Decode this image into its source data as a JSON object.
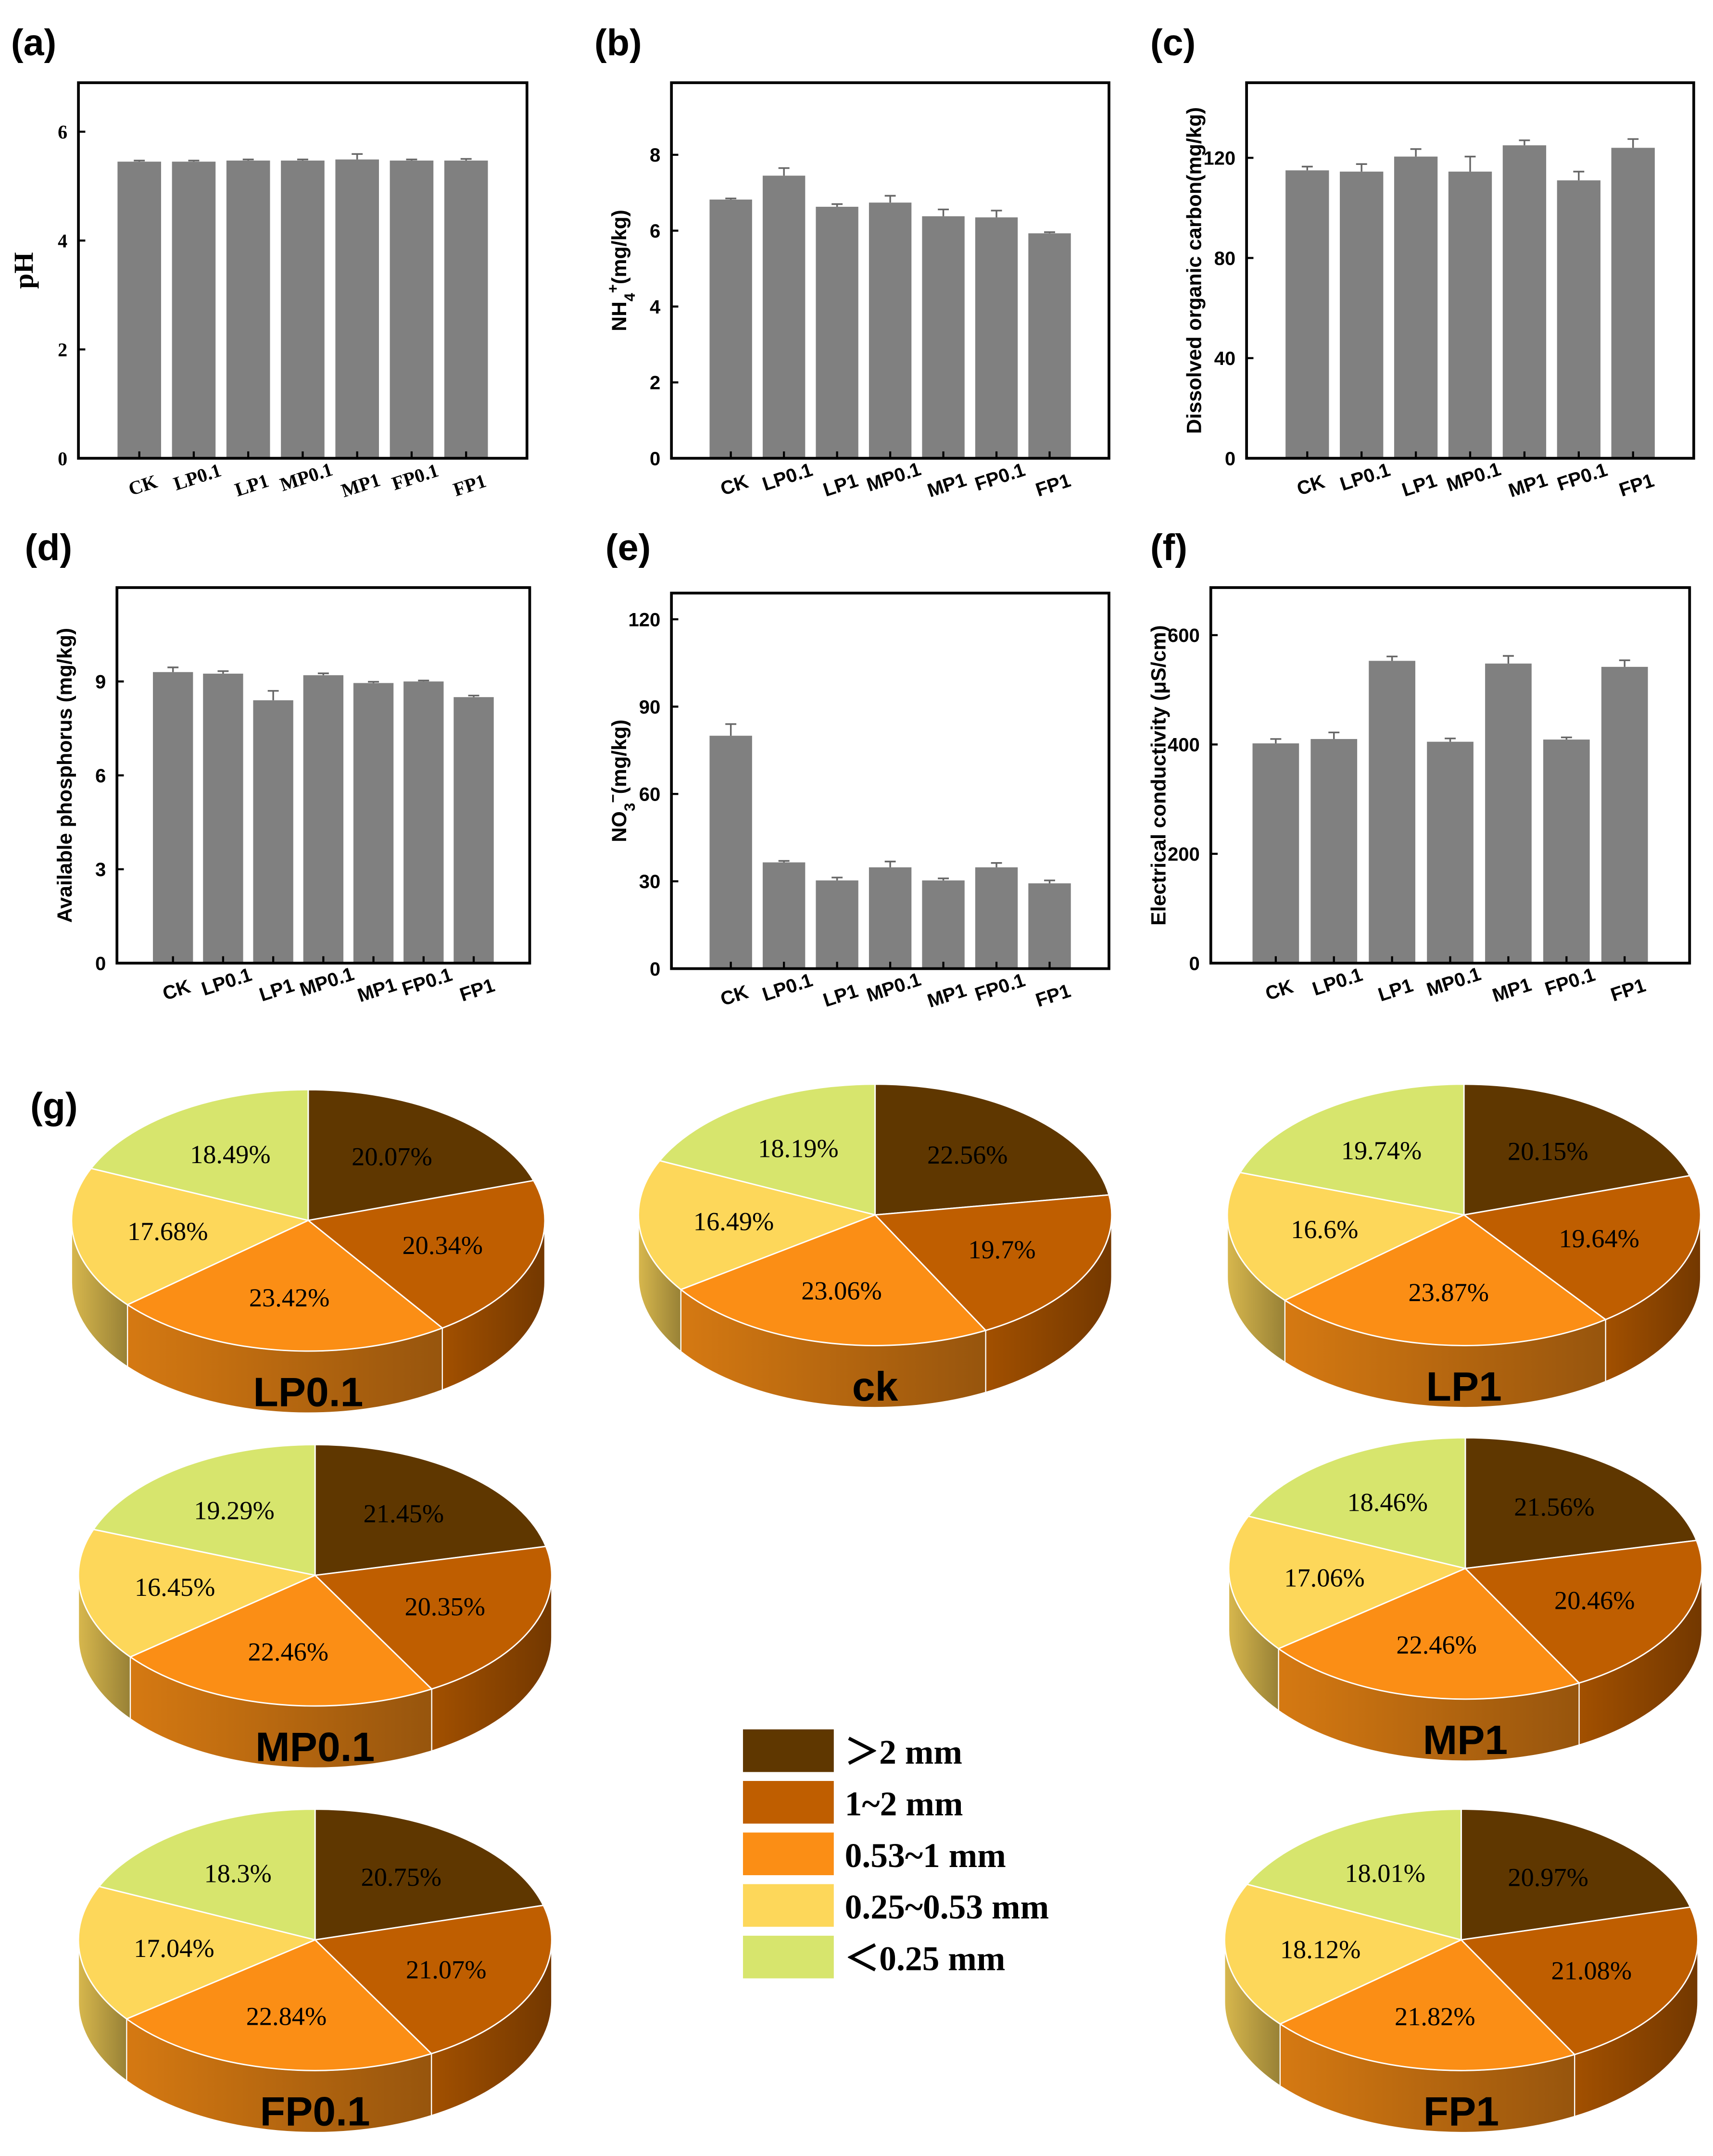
{
  "chart_data": [
    {
      "panel": "(a)",
      "type": "bar",
      "title": "",
      "xlabel": "",
      "ylabel_parts": [
        {
          "t": "pH"
        }
      ],
      "categories": [
        "CK",
        "LP0.1",
        "LP1",
        "MP0.1",
        "MP1",
        "FP0.1",
        "FP1"
      ],
      "values": [
        5.45,
        5.45,
        5.47,
        5.47,
        5.49,
        5.47,
        5.47
      ],
      "errors": [
        0.02,
        0.02,
        0.02,
        0.02,
        0.1,
        0.02,
        0.03
      ],
      "ylim": [
        0,
        6.9
      ],
      "yticks": [
        0,
        2,
        4,
        6
      ],
      "bar_color": "#808080"
    },
    {
      "panel": "(b)",
      "type": "bar",
      "title": "",
      "xlabel": "",
      "ylabel_parts": [
        {
          "t": "NH"
        },
        {
          "t": "4",
          "sub": true
        },
        {
          "t": "+",
          "sup": true
        },
        {
          "t": "(mg/kg)"
        }
      ],
      "categories": [
        "CK",
        "LP0.1",
        "LP1",
        "MP0.1",
        "MP1",
        "FP0.1",
        "FP1"
      ],
      "values": [
        6.82,
        7.45,
        6.63,
        6.74,
        6.38,
        6.35,
        5.93
      ],
      "errors": [
        0.03,
        0.2,
        0.07,
        0.18,
        0.18,
        0.18,
        0.03
      ],
      "ylim": [
        0,
        9.9
      ],
      "yticks": [
        0,
        2,
        4,
        6,
        8
      ],
      "bar_color": "#808080"
    },
    {
      "panel": "(c)",
      "type": "bar",
      "title": "",
      "xlabel": "",
      "ylabel_parts": [
        {
          "t": "Dissolved organic carbon(mg/kg)"
        }
      ],
      "categories": [
        "CK",
        "LP0.1",
        "LP1",
        "MP0.1",
        "MP1",
        "FP0.1",
        "FP1"
      ],
      "values": [
        115,
        114.5,
        120.5,
        114.5,
        125,
        111,
        124
      ],
      "errors": [
        1.5,
        3,
        3,
        6,
        2,
        3.5,
        3.5
      ],
      "ylim": [
        0,
        150
      ],
      "yticks": [
        0,
        40,
        80,
        120
      ],
      "bar_color": "#808080"
    },
    {
      "panel": "(d)",
      "type": "bar",
      "title": "",
      "xlabel": "",
      "ylabel_parts": [
        {
          "t": "Available phosphorus (mg/kg)"
        }
      ],
      "categories": [
        "CK",
        "LP0.1",
        "LP1",
        "MP0.1",
        "MP1",
        "FP0.1",
        "FP1"
      ],
      "values": [
        9.3,
        9.25,
        8.4,
        9.2,
        8.95,
        9.0,
        8.5
      ],
      "errors": [
        0.15,
        0.08,
        0.3,
        0.06,
        0.04,
        0.03,
        0.05
      ],
      "ylim": [
        0,
        12
      ],
      "yticks": [
        0,
        3,
        6,
        9
      ],
      "bar_color": "#808080"
    },
    {
      "panel": "(e)",
      "type": "bar",
      "title": "",
      "xlabel": "",
      "ylabel_parts": [
        {
          "t": "NO"
        },
        {
          "t": "3",
          "sub": true
        },
        {
          "t": "−",
          "sup": true
        },
        {
          "t": "(mg/kg)"
        }
      ],
      "categories": [
        "CK",
        "LP0.1",
        "LP1",
        "MP0.1",
        "MP1",
        "FP0.1",
        "FP1"
      ],
      "values": [
        80,
        36.5,
        30.3,
        34.8,
        30.3,
        34.8,
        29.3
      ],
      "errors": [
        4,
        0.5,
        1,
        2,
        0.7,
        1.5,
        1
      ],
      "ylim": [
        0,
        129
      ],
      "yticks": [
        0,
        30,
        60,
        90,
        120
      ],
      "bar_color": "#808080"
    },
    {
      "panel": "(f)",
      "type": "bar",
      "title": "",
      "xlabel": "",
      "ylabel_parts": [
        {
          "t": "Electrical conductivity (μS/cm)"
        }
      ],
      "categories": [
        "CK",
        "LP0.1",
        "LP1",
        "MP0.1",
        "MP1",
        "FP0.1",
        "FP1"
      ],
      "values": [
        402,
        410,
        553,
        405,
        548,
        409,
        542
      ],
      "errors": [
        8,
        12,
        8,
        6,
        14,
        4,
        12
      ],
      "ylim": [
        0,
        687
      ],
      "yticks": [
        0,
        200,
        400,
        600
      ],
      "bar_color": "#808080"
    },
    {
      "panel": "(g)",
      "type": "pie",
      "legend": [
        {
          "label": "＞2 mm",
          "color": "#5f3700"
        },
        {
          "label": "1~2 mm",
          "color": "#bf5e00"
        },
        {
          "label": "0.53~1 mm",
          "color": "#fb8e15"
        },
        {
          "label": "0.25~0.53 mm",
          "color": "#fdd75a"
        },
        {
          "label": "＜0.25 mm",
          "color": "#d7e56d"
        }
      ],
      "legend_placement": "center-bottom",
      "pies": [
        {
          "name": "LP0.1",
          "values": [
            20.07,
            20.34,
            23.42,
            17.68,
            18.49
          ],
          "labels": [
            "20.07%",
            "20.34%",
            "23.42%",
            "17.68%",
            "18.49%"
          ]
        },
        {
          "name": "ck",
          "values": [
            22.56,
            19.7,
            23.06,
            16.49,
            18.19
          ],
          "labels": [
            "22.56%",
            "19.7%",
            "23.06%",
            "16.49%",
            "18.19%"
          ]
        },
        {
          "name": "LP1",
          "values": [
            20.15,
            19.64,
            23.87,
            16.6,
            19.74
          ],
          "labels": [
            "20.15%",
            "19.64%",
            "23.87%",
            "16.6%",
            "19.74%"
          ]
        },
        {
          "name": "MP0.1",
          "values": [
            21.45,
            20.35,
            22.46,
            16.45,
            19.29
          ],
          "labels": [
            "21.45%",
            "20.35%",
            "22.46%",
            "16.45%",
            "19.29%"
          ]
        },
        {
          "name": "MP1",
          "values": [
            21.56,
            20.46,
            22.46,
            17.06,
            18.46
          ],
          "labels": [
            "21.56%",
            "20.46%",
            "22.46%",
            "17.06%",
            "18.46%"
          ]
        },
        {
          "name": "FP0.1",
          "values": [
            20.75,
            21.07,
            22.84,
            17.04,
            18.3
          ],
          "labels": [
            "20.75%",
            "21.07%",
            "22.84%",
            "17.04%",
            "18.3%"
          ]
        },
        {
          "name": "FP1",
          "values": [
            20.97,
            21.08,
            21.82,
            18.12,
            18.01
          ],
          "labels": [
            "20.97%",
            "21.08%",
            "21.82%",
            "18.12%",
            "18.01%"
          ]
        }
      ]
    }
  ]
}
